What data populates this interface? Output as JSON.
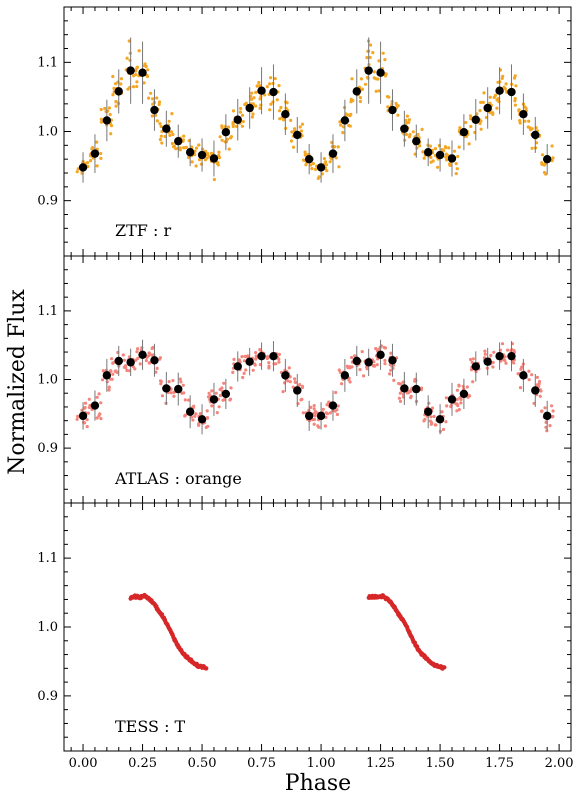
{
  "chart_data": {
    "type": "scatter",
    "xlabel": "Phase",
    "ylabel": "Normalized Flux",
    "xlim": [
      -0.08,
      2.05
    ],
    "ylim": [
      0.82,
      1.18
    ],
    "xticks": [
      0.0,
      0.25,
      0.5,
      0.75,
      1.0,
      1.25,
      1.5,
      1.75,
      2.0
    ],
    "xtick_labels": [
      "0.00",
      "0.25",
      "0.50",
      "0.75",
      "1.00",
      "1.25",
      "1.50",
      "1.75",
      "2.00"
    ],
    "yticks": [
      0.9,
      1.0,
      1.1
    ],
    "ytick_labels": [
      "0.9",
      "1.0",
      "1.1"
    ],
    "grid": false,
    "panels": [
      {
        "label": "ZTF : r",
        "point_color": "#f5a623",
        "binned": {
          "x": [
            0.0,
            0.05,
            0.1,
            0.15,
            0.2,
            0.25,
            0.3,
            0.35,
            0.4,
            0.45,
            0.5,
            0.55,
            0.6,
            0.65,
            0.7,
            0.75,
            0.8,
            0.85,
            0.9,
            0.95,
            1.0,
            1.05,
            1.1,
            1.15,
            1.2,
            1.25,
            1.3,
            1.35,
            1.4,
            1.45,
            1.5,
            1.55,
            1.6,
            1.65,
            1.7,
            1.75,
            1.8,
            1.85,
            1.9,
            1.95
          ],
          "y": [
            0.948,
            0.968,
            1.016,
            1.058,
            1.088,
            1.085,
            1.031,
            1.004,
            0.986,
            0.97,
            0.966,
            0.961,
            0.999,
            1.017,
            1.034,
            1.059,
            1.057,
            1.025,
            0.995,
            0.96,
            0.948,
            0.968,
            1.016,
            1.058,
            1.088,
            1.085,
            1.031,
            1.004,
            0.986,
            0.97,
            0.966,
            0.961,
            0.999,
            1.017,
            1.034,
            1.059,
            1.057,
            1.025,
            0.995,
            0.96
          ],
          "err": [
            0.022,
            0.028,
            0.03,
            0.032,
            0.048,
            0.045,
            0.03,
            0.026,
            0.024,
            0.02,
            0.024,
            0.026,
            0.026,
            0.03,
            0.03,
            0.034,
            0.04,
            0.03,
            0.026,
            0.022,
            0.022,
            0.028,
            0.03,
            0.032,
            0.048,
            0.045,
            0.03,
            0.026,
            0.024,
            0.02,
            0.024,
            0.026,
            0.026,
            0.03,
            0.03,
            0.034,
            0.04,
            0.03,
            0.026,
            0.022
          ]
        }
      },
      {
        "label": "ATLAS : orange",
        "point_color": "#f4857c",
        "binned": {
          "x": [
            0.0,
            0.05,
            0.1,
            0.15,
            0.2,
            0.25,
            0.3,
            0.35,
            0.4,
            0.45,
            0.5,
            0.55,
            0.6,
            0.65,
            0.7,
            0.75,
            0.8,
            0.85,
            0.9,
            0.95,
            1.0,
            1.05,
            1.1,
            1.15,
            1.2,
            1.25,
            1.3,
            1.35,
            1.4,
            1.45,
            1.5,
            1.55,
            1.6,
            1.65,
            1.7,
            1.75,
            1.8,
            1.85,
            1.9,
            1.95
          ],
          "y": [
            0.947,
            0.962,
            1.006,
            1.027,
            1.025,
            1.036,
            1.028,
            0.987,
            0.986,
            0.953,
            0.942,
            0.971,
            0.979,
            1.019,
            1.026,
            1.034,
            1.034,
            1.006,
            0.984,
            0.947,
            0.947,
            0.962,
            1.006,
            1.027,
            1.025,
            1.036,
            1.028,
            0.987,
            0.986,
            0.953,
            0.942,
            0.971,
            0.979,
            1.019,
            1.026,
            1.034,
            1.034,
            1.006,
            0.984,
            0.947
          ],
          "err": [
            0.02,
            0.022,
            0.024,
            0.022,
            0.02,
            0.022,
            0.024,
            0.024,
            0.024,
            0.024,
            0.022,
            0.024,
            0.022,
            0.022,
            0.02,
            0.02,
            0.022,
            0.024,
            0.024,
            0.022,
            0.02,
            0.022,
            0.024,
            0.022,
            0.02,
            0.022,
            0.024,
            0.024,
            0.024,
            0.024,
            0.022,
            0.024,
            0.022,
            0.022,
            0.02,
            0.02,
            0.022,
            0.024,
            0.024,
            0.022
          ]
        }
      },
      {
        "label": "TESS : T",
        "point_color": "#d62728",
        "segments": [
          {
            "x": [
              0.2,
              0.22,
              0.24,
              0.26,
              0.28,
              0.3,
              0.32,
              0.34,
              0.36,
              0.38,
              0.4,
              0.42,
              0.44,
              0.46,
              0.48,
              0.5,
              0.52
            ],
            "y": [
              1.043,
              1.044,
              1.043,
              1.045,
              1.04,
              1.033,
              1.022,
              1.012,
              1.0,
              0.985,
              0.972,
              0.962,
              0.955,
              0.949,
              0.944,
              0.942,
              0.94
            ]
          },
          {
            "x": [
              1.2,
              1.22,
              1.24,
              1.26,
              1.28,
              1.3,
              1.32,
              1.34,
              1.36,
              1.38,
              1.4,
              1.42,
              1.44,
              1.46,
              1.48,
              1.5,
              1.52
            ],
            "y": [
              1.043,
              1.044,
              1.043,
              1.045,
              1.04,
              1.033,
              1.022,
              1.012,
              1.0,
              0.985,
              0.972,
              0.962,
              0.955,
              0.949,
              0.944,
              0.942,
              0.94
            ]
          }
        ]
      }
    ]
  }
}
